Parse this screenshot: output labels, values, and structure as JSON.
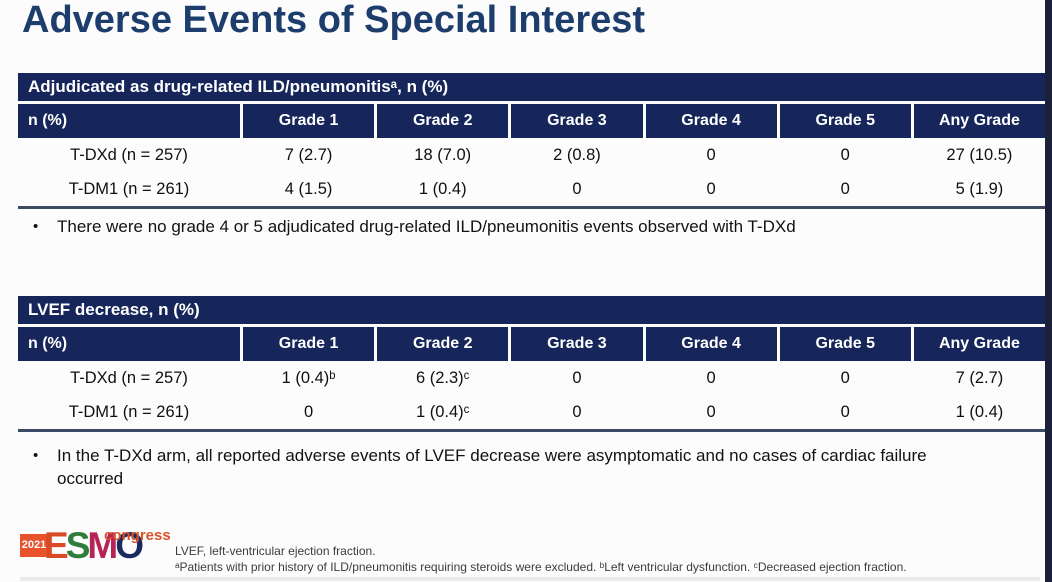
{
  "slide": {
    "title": "Adverse Events of Special Interest"
  },
  "tables": [
    {
      "title": "Adjudicated as drug-related ILD/pneumonitisᵃ, n (%)",
      "columns": [
        "n (%)",
        "Grade 1",
        "Grade 2",
        "Grade 3",
        "Grade 4",
        "Grade 5",
        "Any Grade"
      ],
      "rows": [
        {
          "label": "T-DXd (n = 257)",
          "values": [
            "7 (2.7)",
            "18 (7.0)",
            "2 (0.8)",
            "0",
            "0",
            "27 (10.5)"
          ]
        },
        {
          "label": "T-DM1 (n = 261)",
          "values": [
            "4 (1.5)",
            "1 (0.4)",
            "0",
            "0",
            "0",
            "5 (1.9)"
          ]
        }
      ],
      "note": "There were no grade 4 or 5 adjudicated drug-related ILD/pneumonitis events observed with T-DXd"
    },
    {
      "title": "LVEF decrease, n (%)",
      "columns": [
        "n (%)",
        "Grade 1",
        "Grade 2",
        "Grade 3",
        "Grade 4",
        "Grade 5",
        "Any Grade"
      ],
      "rows": [
        {
          "label": "T-DXd (n = 257)",
          "values": [
            "1 (0.4)ᵇ",
            "6 (2.3)ᶜ",
            "0",
            "0",
            "0",
            "7 (2.7)"
          ]
        },
        {
          "label": "T-DM1 (n = 261)",
          "values": [
            "0",
            "1 (0.4)ᶜ",
            "0",
            "0",
            "0",
            "1 (0.4)"
          ]
        }
      ],
      "note": "In the T-DXd arm, all reported adverse events of LVEF decrease were asymptomatic and no cases of cardiac failure occurred"
    }
  ],
  "footer": {
    "logo": {
      "year": "2021",
      "letters": [
        "E",
        "S",
        "M",
        "O"
      ],
      "congress": "congress"
    },
    "footnotes": [
      "LVEF, left-ventricular ejection fraction.",
      "ᵃPatients with prior history of ILD/pneumonitis requiring steroids were excluded.  ᵇLeft ventricular dysfunction.  ᶜDecreased ejection fraction."
    ]
  },
  "colors": {
    "table_header_navy": "#17265a",
    "title_navy": "#1d3d6d",
    "table_rule": "#3d4a66",
    "logo_orange": "#e8532e",
    "logo_letter_e": "#d84a26",
    "logo_letter_s": "#2f7d3b",
    "logo_letter_m": "#b62457",
    "logo_letter_o": "#1b2a5e",
    "congress_orange": "#d9542b",
    "right_edge_strip": "#1b2138"
  }
}
